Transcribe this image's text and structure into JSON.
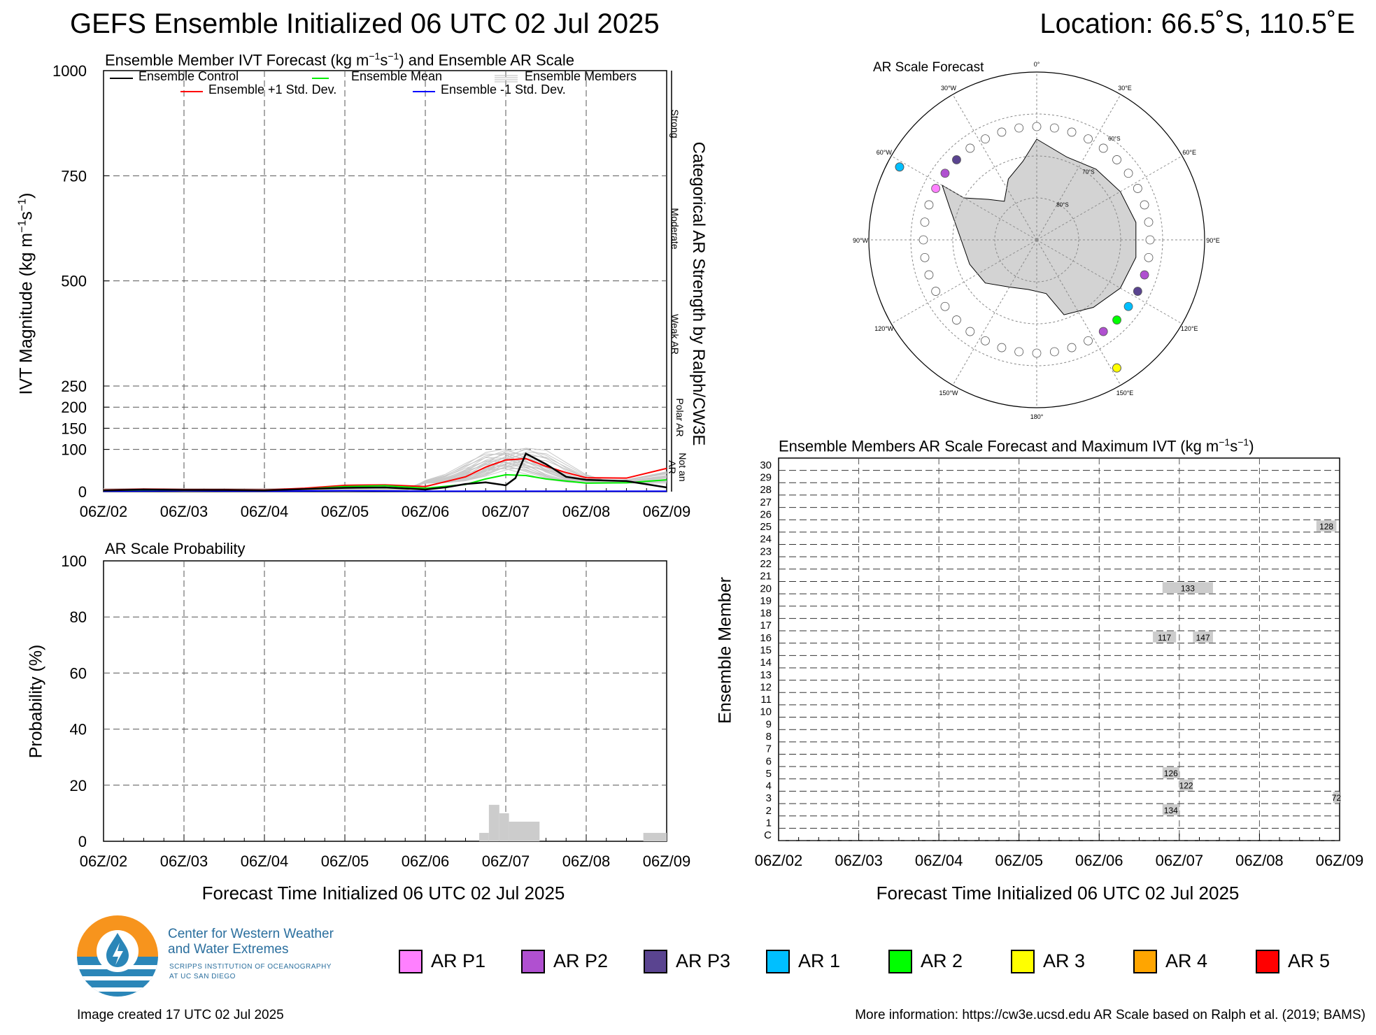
{
  "header": {
    "title": "GEFS Ensemble Initialized 06 UTC 02 Jul 2025",
    "location": "Location: 66.5˚S, 110.5˚E"
  },
  "ivt_panel": {
    "title": "Ensemble Member IVT Forecast (kg m",
    "title_sup1": "−1",
    "title_mid": "s",
    "title_sup2": "−1",
    "title_end": ") and Ensemble AR Scale",
    "ylabel": "IVT Magnitude (kg m",
    "ylabel_sup1": "−1",
    "ylabel_mid": "s",
    "ylabel_sup2": "−1",
    "ylabel_end": ")",
    "right_label": "Categorical AR Strength by Ralph/CW3E",
    "legend": {
      "control": "Ensemble Control",
      "mean": "Ensemble Mean",
      "members": "Ensemble Members",
      "plus": "Ensemble +1 Std. Dev.",
      "minus": "Ensemble -1 Std. Dev."
    },
    "categories": [
      "Strong",
      "Moderate",
      "Weak AR",
      "Polar AR",
      "Not an AR"
    ]
  },
  "prob_panel": {
    "title": "AR Scale Probability",
    "ylabel": "Probability (%)",
    "xlabel": "Forecast Time Initialized 06 UTC 02 Jul 2025"
  },
  "map_panel": {
    "title": "AR Scale Forecast",
    "lon_labels": [
      "0°",
      "30°E",
      "60°E",
      "90°E",
      "120°E",
      "150°E",
      "180°",
      "150°W",
      "120°W",
      "90°W",
      "60°W",
      "30°W"
    ],
    "lat_labels": [
      "60°S",
      "70°S",
      "80°S"
    ]
  },
  "member_panel": {
    "title": "Ensemble Members AR Scale Forecast and Maximum IVT (kg m",
    "title_sup1": "−1",
    "title_mid": "s",
    "title_sup2": "−1",
    "title_end": ")",
    "ylabel": "Ensemble Member",
    "xlabel": "Forecast Time Initialized 06 UTC 02 Jul 2025"
  },
  "legend_bottom": [
    {
      "label": "AR P1",
      "color": "#ff80ff"
    },
    {
      "label": "AR P2",
      "color": "#b050d0"
    },
    {
      "label": "AR P3",
      "color": "#5a4490"
    },
    {
      "label": "AR 1",
      "color": "#00bfff"
    },
    {
      "label": "AR 2",
      "color": "#00ff00"
    },
    {
      "label": "AR 3",
      "color": "#ffff00"
    },
    {
      "label": "AR 4",
      "color": "#ffa500"
    },
    {
      "label": "AR 5",
      "color": "#ff0000"
    }
  ],
  "logo": {
    "line1": "Center for Western Weather",
    "line2": "and Water Extremes",
    "line3": "SCRIPPS INSTITUTION OF OCEANOGRAPHY",
    "line4": "AT UC SAN DIEGO"
  },
  "footer": {
    "created": "Image created 17 UTC 02 Jul 2025",
    "info": "More information: https://cw3e.ucsd.edu AR Scale based on Ralph et al. (2019; BAMS)"
  },
  "chart_data": [
    {
      "type": "line",
      "name": "ivt",
      "x_labels": [
        "06Z/02",
        "06Z/03",
        "06Z/04",
        "06Z/05",
        "06Z/06",
        "06Z/07",
        "06Z/08",
        "06Z/09"
      ],
      "x_days": [
        0,
        1,
        2,
        3,
        4,
        5,
        6,
        7
      ],
      "ylim": [
        0,
        1000
      ],
      "yticks": [
        0,
        100,
        150,
        200,
        250,
        500,
        750,
        1000
      ],
      "series": [
        {
          "name": "Ensemble Control",
          "color": "#000000",
          "points": [
            [
              0,
              3
            ],
            [
              0.5,
              5
            ],
            [
              1,
              4
            ],
            [
              1.5,
              4
            ],
            [
              2,
              3
            ],
            [
              2.5,
              6
            ],
            [
              3,
              9
            ],
            [
              3.5,
              10
            ],
            [
              4,
              5
            ],
            [
              4.25,
              10
            ],
            [
              4.5,
              18
            ],
            [
              4.75,
              22
            ],
            [
              5,
              15
            ],
            [
              5.12,
              32
            ],
            [
              5.25,
              90
            ],
            [
              5.5,
              65
            ],
            [
              5.75,
              35
            ],
            [
              6,
              28
            ],
            [
              6.5,
              25
            ],
            [
              7,
              10
            ]
          ]
        },
        {
          "name": "Ensemble Mean",
          "color": "#00ee00",
          "points": [
            [
              0,
              3
            ],
            [
              0.5,
              4
            ],
            [
              1,
              4
            ],
            [
              1.5,
              4
            ],
            [
              2,
              3
            ],
            [
              2.5,
              6
            ],
            [
              3,
              12
            ],
            [
              3.5,
              14
            ],
            [
              4,
              8
            ],
            [
              4.5,
              17
            ],
            [
              4.75,
              30
            ],
            [
              5,
              40
            ],
            [
              5.25,
              38
            ],
            [
              5.5,
              30
            ],
            [
              6,
              20
            ],
            [
              6.5,
              21
            ],
            [
              7,
              28
            ]
          ]
        },
        {
          "name": "Ensemble +1 Std. Dev.",
          "color": "#ff0000",
          "points": [
            [
              0,
              4
            ],
            [
              0.5,
              6
            ],
            [
              1,
              5
            ],
            [
              1.5,
              5
            ],
            [
              2,
              4
            ],
            [
              2.5,
              8
            ],
            [
              3,
              15
            ],
            [
              3.5,
              16
            ],
            [
              4,
              12
            ],
            [
              4.5,
              35
            ],
            [
              4.75,
              58
            ],
            [
              5,
              75
            ],
            [
              5.25,
              78
            ],
            [
              5.5,
              60
            ],
            [
              5.75,
              45
            ],
            [
              6,
              33
            ],
            [
              6.5,
              32
            ],
            [
              7,
              55
            ]
          ]
        },
        {
          "name": "Ensemble -1 Std. Dev.",
          "color": "#0000ff",
          "points": [
            [
              0,
              1
            ],
            [
              1,
              2
            ],
            [
              2,
              1
            ],
            [
              3,
              2
            ],
            [
              4,
              1
            ],
            [
              5,
              1
            ],
            [
              6,
              1
            ],
            [
              7,
              1
            ]
          ]
        }
      ]
    },
    {
      "type": "bar",
      "name": "ar_probability",
      "ylim": [
        0,
        100
      ],
      "yticks": [
        0,
        20,
        40,
        60,
        80,
        100
      ],
      "bars": [
        {
          "x0": 4.67,
          "x1": 4.79,
          "value": 3
        },
        {
          "x0": 4.79,
          "x1": 4.92,
          "value": 13
        },
        {
          "x0": 4.92,
          "x1": 5.04,
          "value": 10
        },
        {
          "x0": 5.04,
          "x1": 5.42,
          "value": 7
        },
        {
          "x0": 6.71,
          "x1": 7.0,
          "value": 3
        }
      ]
    },
    {
      "type": "table",
      "name": "member_ar_scale",
      "members": [
        "C",
        "1",
        "2",
        "3",
        "4",
        "5",
        "6",
        "7",
        "8",
        "9",
        "10",
        "11",
        "12",
        "13",
        "14",
        "15",
        "16",
        "17",
        "18",
        "19",
        "20",
        "21",
        "22",
        "23",
        "24",
        "25",
        "26",
        "27",
        "28",
        "29",
        "30"
      ],
      "entries": [
        {
          "member": 2,
          "start": 4.79,
          "end": 5.0,
          "max_ivt": "134"
        },
        {
          "member": 3,
          "start": 6.92,
          "end": 7.0,
          "max_ivt": "72"
        },
        {
          "member": 4,
          "start": 5.0,
          "end": 5.17,
          "max_ivt": "122"
        },
        {
          "member": 5,
          "start": 4.79,
          "end": 5.0,
          "max_ivt": "126"
        },
        {
          "member": 16,
          "start": 4.67,
          "end": 4.96,
          "max_ivt": "117"
        },
        {
          "member": 16,
          "start": 5.17,
          "end": 5.42,
          "max_ivt": "147"
        },
        {
          "member": 20,
          "start": 4.79,
          "end": 5.42,
          "max_ivt": "133"
        },
        {
          "member": 25,
          "start": 6.71,
          "end": 6.96,
          "max_ivt": "128"
        }
      ]
    }
  ]
}
